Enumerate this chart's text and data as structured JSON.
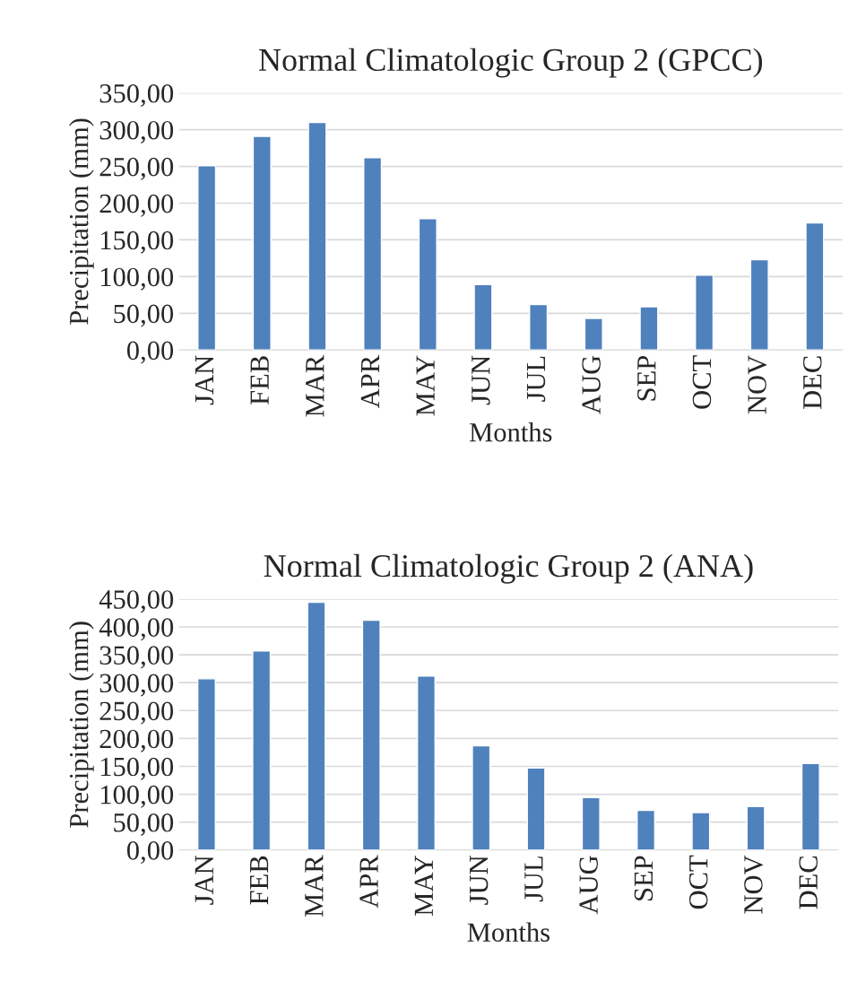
{
  "chart_data": [
    {
      "type": "bar",
      "title": "Normal Climatologic Group 2 (GPCC)",
      "xlabel": "Months",
      "ylabel": "Precipitation (mm)",
      "categories": [
        "JAN",
        "FEB",
        "MAR",
        "APR",
        "MAY",
        "JUN",
        "JUL",
        "AUG",
        "SEP",
        "OCT",
        "NOV",
        "DEC"
      ],
      "values": [
        251,
        291,
        310,
        262,
        179,
        89,
        62,
        43,
        59,
        102,
        123,
        173
      ],
      "color": "#4f81bd",
      "ylim": [
        0,
        350
      ],
      "yticks": [
        {
          "value": 0,
          "label": "0,00"
        },
        {
          "value": 50,
          "label": "50,00"
        },
        {
          "value": 100,
          "label": "100,00"
        },
        {
          "value": 150,
          "label": "150,00"
        },
        {
          "value": 200,
          "label": "200,00"
        },
        {
          "value": 250,
          "label": "250,00"
        },
        {
          "value": 300,
          "label": "300,00"
        },
        {
          "value": 350,
          "label": "350,00"
        }
      ],
      "grid": "y"
    },
    {
      "type": "bar",
      "title": "Normal Climatologic Group 2 (ANA)",
      "xlabel": "Months",
      "ylabel": "Precipitation (mm)",
      "categories": [
        "JAN",
        "FEB",
        "MAR",
        "APR",
        "MAY",
        "JUN",
        "JUL",
        "AUG",
        "SEP",
        "OCT",
        "NOV",
        "DEC"
      ],
      "values": [
        307,
        357,
        444,
        412,
        312,
        187,
        147,
        94,
        71,
        67,
        78,
        155
      ],
      "color": "#4f81bd",
      "ylim": [
        0,
        450
      ],
      "yticks": [
        {
          "value": 0,
          "label": "0,00"
        },
        {
          "value": 50,
          "label": "50,00"
        },
        {
          "value": 100,
          "label": "100,00"
        },
        {
          "value": 150,
          "label": "150,00"
        },
        {
          "value": 200,
          "label": "200,00"
        },
        {
          "value": 250,
          "label": "250,00"
        },
        {
          "value": 300,
          "label": "300,00"
        },
        {
          "value": 350,
          "label": "350,00"
        },
        {
          "value": 400,
          "label": "400,00"
        },
        {
          "value": 450,
          "label": "450,00"
        }
      ],
      "grid": "y"
    }
  ]
}
